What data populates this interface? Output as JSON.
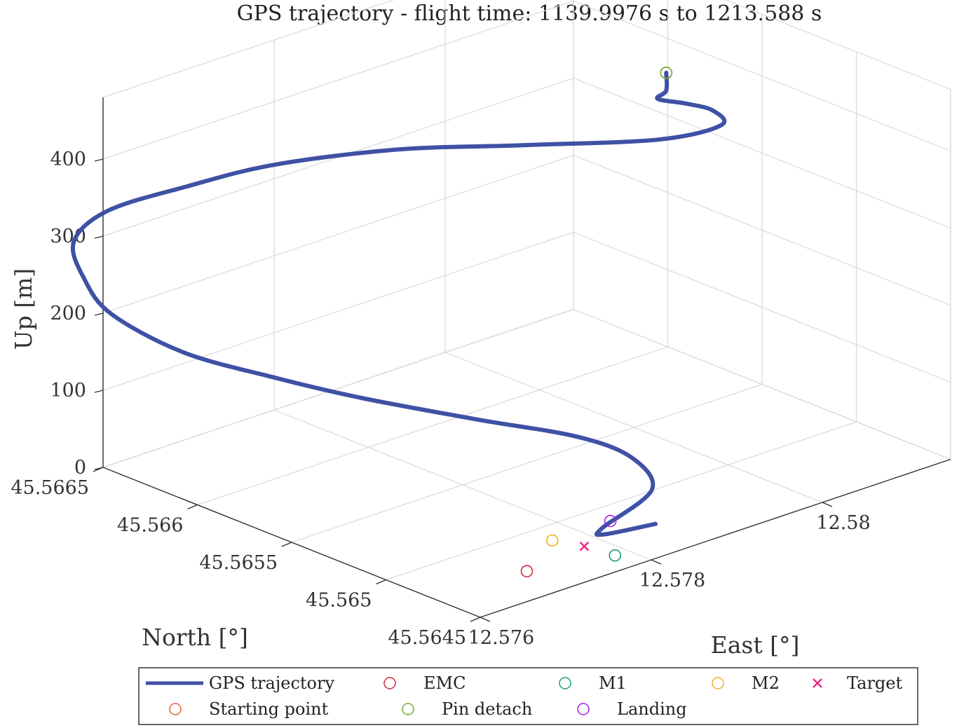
{
  "chart_data": {
    "type": "line",
    "title": "GPS trajectory - flight time: 1139.9976 s to 1213.588 s",
    "xlabel": "East [°]",
    "ylabel": "North [°]",
    "zlabel": "Up [m]",
    "x_ticks": [
      "12.576",
      "12.578",
      "12.58"
    ],
    "y_ticks": [
      "45.5645",
      "45.565",
      "45.5655",
      "45.566",
      "45.5665"
    ],
    "z_ticks": [
      "0",
      "100",
      "200",
      "300",
      "400"
    ],
    "xlim": [
      12.576,
      12.5815
    ],
    "ylim": [
      45.5645,
      45.5665
    ],
    "zlim": [
      0,
      480
    ],
    "grid": true,
    "legend_position": "bottom",
    "colors": {
      "trajectory": "#3f51a5",
      "starting_point": "#e8623a",
      "emc": "#cc2a3a",
      "pin_detach": "#77ac30",
      "m1": "#1a9e77",
      "landing": "#a020f0",
      "m2": "#edb120",
      "target": "#e7298a"
    },
    "series": [
      {
        "name": "GPS trajectory",
        "points": [
          [
            12.5786,
            45.56475,
            0
          ],
          [
            12.5781,
            45.5648,
            0
          ],
          [
            12.5782,
            45.56485,
            0
          ],
          [
            12.579,
            45.56495,
            10
          ],
          [
            12.5792,
            45.56515,
            25
          ],
          [
            12.579,
            45.56535,
            40
          ],
          [
            12.5784,
            45.5656,
            60
          ],
          [
            12.5777,
            45.5659,
            85
          ],
          [
            12.5771,
            45.5661,
            115
          ],
          [
            12.5765,
            45.5663,
            150
          ],
          [
            12.5761,
            45.5665,
            195
          ],
          [
            12.576,
            45.5666,
            235
          ],
          [
            12.5761,
            45.5667,
            270
          ],
          [
            12.5765,
            45.5667,
            295
          ],
          [
            12.5772,
            45.5666,
            310
          ],
          [
            12.578,
            45.5665,
            318
          ],
          [
            12.579,
            45.5663,
            320
          ],
          [
            12.5798,
            45.566,
            325
          ],
          [
            12.5805,
            45.5656,
            345
          ],
          [
            12.5808,
            45.5654,
            372
          ],
          [
            12.5807,
            45.5654,
            395
          ],
          [
            12.5806,
            45.5655,
            398
          ],
          [
            12.5805,
            45.5656,
            398
          ],
          [
            12.5806,
            45.5656,
            405
          ],
          [
            12.5806,
            45.5656,
            428
          ]
        ]
      }
    ],
    "markers": [
      {
        "name": "Starting point",
        "x": 12.5806,
        "y": 45.5656,
        "z": 428,
        "shape": "circle"
      },
      {
        "name": "EMC",
        "x": 12.57703,
        "y": 45.56472,
        "z": 0,
        "shape": "circle"
      },
      {
        "name": "Pin detach",
        "x": 12.5806,
        "y": 45.5656,
        "z": 428,
        "shape": "circle"
      },
      {
        "name": "M1",
        "x": 12.57784,
        "y": 45.56462,
        "z": 0,
        "shape": "circle"
      },
      {
        "name": "Landing",
        "x": 12.57836,
        "y": 45.56488,
        "z": 0,
        "shape": "circle"
      },
      {
        "name": "M2",
        "x": 12.57768,
        "y": 45.56488,
        "z": 0,
        "shape": "circle"
      },
      {
        "name": "Target",
        "x": 12.57779,
        "y": 45.56476,
        "z": 0,
        "shape": "x"
      }
    ],
    "legend": [
      {
        "label": "GPS trajectory",
        "symbol": "line",
        "color_key": "trajectory"
      },
      {
        "label": "EMC",
        "symbol": "circle",
        "color_key": "emc"
      },
      {
        "label": "M1",
        "symbol": "circle",
        "color_key": "m1"
      },
      {
        "label": "M2",
        "symbol": "circle",
        "color_key": "m2"
      },
      {
        "label": "Target",
        "symbol": "x",
        "color_key": "target"
      },
      {
        "label": "Starting point",
        "symbol": "circle",
        "color_key": "starting_point"
      },
      {
        "label": "Pin detach",
        "symbol": "circle",
        "color_key": "pin_detach"
      },
      {
        "label": "Landing",
        "symbol": "circle",
        "color_key": "landing"
      }
    ]
  }
}
